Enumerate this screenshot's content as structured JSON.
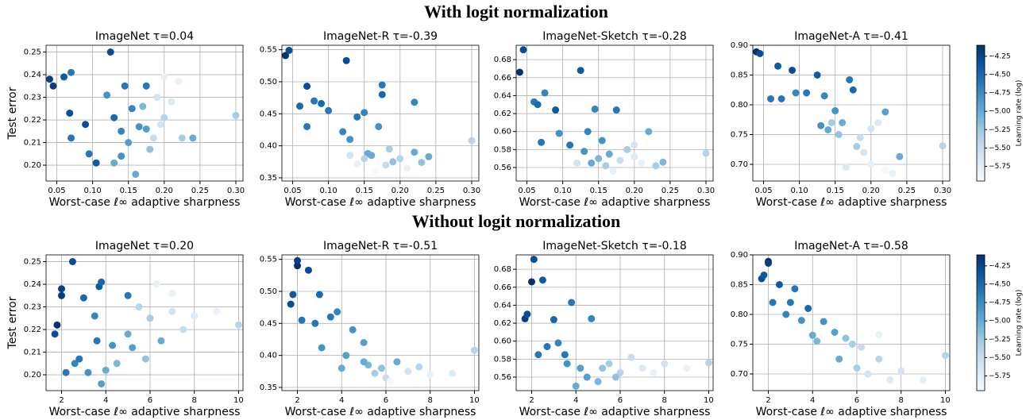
{
  "headings": [
    "With logit normalization",
    "Without logit normalization"
  ],
  "colorbars": [
    {
      "label": "Learning rate (log)",
      "cmap": "Blues",
      "clim": [
        -5.95,
        -4.1
      ],
      "ticks": [
        {
          "value": -4.25,
          "label": "−4.25"
        },
        {
          "value": -4.5,
          "label": "−4.50"
        },
        {
          "value": -4.75,
          "label": "−4.75"
        },
        {
          "value": -5,
          "label": "−5.00"
        },
        {
          "value": -5.25,
          "label": "−5.25"
        },
        {
          "value": -5.5,
          "label": "−5.50"
        },
        {
          "value": -5.75,
          "label": "−5.75"
        }
      ]
    },
    {
      "label": "Learning rate (log)",
      "cmap": "Blues",
      "clim": [
        -5.95,
        -4.1
      ],
      "ticks": [
        {
          "value": -4.25,
          "label": "−4.25"
        },
        {
          "value": -4.5,
          "label": "−4.50"
        },
        {
          "value": -4.75,
          "label": "−4.75"
        },
        {
          "value": -5,
          "label": "−5.00"
        },
        {
          "value": -5.25,
          "label": "−5.25"
        },
        {
          "value": -5.5,
          "label": "−5.50"
        },
        {
          "value": -5.75,
          "label": "−5.75"
        }
      ]
    }
  ],
  "chart_data": [
    {
      "type": "scatter",
      "title": "ImageNet τ=0.04",
      "xlabel": "Worst-case ℓ∞ adaptive sharpness",
      "ylabel": "Test error",
      "grid": true,
      "xlim": [
        0.035,
        0.31
      ],
      "ylim": [
        0.193,
        0.253
      ],
      "xticks": [
        0.05,
        {
          "value": 0.1,
          "label": "0.10"
        },
        0.15,
        {
          "value": 0.2,
          "label": "0.20"
        },
        0.25,
        {
          "value": 0.3,
          "label": "0.30"
        }
      ],
      "yticks": [
        {
          "value": 0.2,
          "label": "0.20"
        },
        0.21,
        0.22,
        0.23,
        0.24,
        0.25
      ],
      "x": [
        0.04,
        0.045,
        0.06,
        0.07,
        0.068,
        0.07,
        0.09,
        0.095,
        0.105,
        0.12,
        0.125,
        0.13,
        0.13,
        0.14,
        0.145,
        0.15,
        0.155,
        0.16,
        0.165,
        0.17,
        0.175,
        0.175,
        0.18,
        0.19,
        0.2,
        0.2,
        0.21,
        0.22,
        0.225,
        0.24,
        0.3,
        0.185,
        0.195,
        0.14
      ],
      "y": [
        0.238,
        0.235,
        0.239,
        0.241,
        0.223,
        0.212,
        0.218,
        0.205,
        0.201,
        0.231,
        0.25,
        0.221,
        0.201,
        0.215,
        0.235,
        0.21,
        0.225,
        0.196,
        0.217,
        0.226,
        0.235,
        0.216,
        0.207,
        0.23,
        0.239,
        0.221,
        0.228,
        0.237,
        0.212,
        0.212,
        0.222,
        0.212,
        0.218,
        0.204
      ],
      "c": [
        -4.2,
        -4.2,
        -4.4,
        -4.6,
        -4.3,
        -4.6,
        -4.3,
        -4.6,
        -4.4,
        -4.8,
        -4.3,
        -4.5,
        -5.0,
        -4.7,
        -4.6,
        -4.9,
        -4.7,
        -5.0,
        -4.8,
        -5.1,
        -4.6,
        -4.9,
        -5.2,
        -5.6,
        -5.8,
        -5.4,
        -5.7,
        -5.8,
        -5.3,
        -5.0,
        -5.3,
        -5.5,
        -5.6,
        -4.8
      ]
    },
    {
      "type": "scatter",
      "title": "ImageNet-R τ=-0.39",
      "xlabel": "Worst-case ℓ∞ adaptive sharpness",
      "grid": true,
      "xlim": [
        0.035,
        0.31
      ],
      "ylim": [
        0.345,
        0.557
      ],
      "xticks": [
        0.05,
        {
          "value": 0.1,
          "label": "0.10"
        },
        0.15,
        {
          "value": 0.2,
          "label": "0.20"
        },
        0.25,
        {
          "value": 0.3,
          "label": "0.30"
        }
      ],
      "yticks": [
        0.35,
        {
          "value": 0.4,
          "label": "0.40"
        },
        0.45,
        {
          "value": 0.5,
          "label": "0.50"
        },
        0.55
      ],
      "x": [
        0.04,
        0.045,
        0.06,
        0.07,
        0.07,
        0.08,
        0.09,
        0.1,
        0.12,
        0.125,
        0.13,
        0.14,
        0.15,
        0.155,
        0.16,
        0.17,
        0.175,
        0.175,
        0.18,
        0.19,
        0.2,
        0.21,
        0.22,
        0.22,
        0.23,
        0.24,
        0.3,
        0.13,
        0.14,
        0.165,
        0.185,
        0.15
      ],
      "y": [
        0.541,
        0.549,
        0.462,
        0.493,
        0.43,
        0.47,
        0.466,
        0.455,
        0.422,
        0.533,
        0.41,
        0.445,
        0.452,
        0.388,
        0.385,
        0.43,
        0.495,
        0.48,
        0.37,
        0.375,
        0.38,
        0.365,
        0.39,
        0.468,
        0.374,
        0.383,
        0.408,
        0.385,
        0.372,
        0.36,
        0.395,
        0.38
      ],
      "c": [
        -4.1,
        -4.3,
        -4.5,
        -4.3,
        -4.6,
        -4.6,
        -4.5,
        -4.6,
        -4.7,
        -4.3,
        -4.8,
        -4.6,
        -4.7,
        -5.0,
        -5.0,
        -4.8,
        -4.6,
        -4.5,
        -5.5,
        -5.2,
        -5.4,
        -5.8,
        -5.0,
        -4.7,
        -5.2,
        -5.0,
        -5.4,
        -5.6,
        -5.8,
        -5.9,
        -5.3,
        -5.4
      ]
    },
    {
      "type": "scatter",
      "title": "ImageNet-Sketch τ=-0.28",
      "xlabel": "Worst-case ℓ∞ adaptive sharpness",
      "grid": true,
      "xlim": [
        0.035,
        0.31
      ],
      "ylim": [
        0.545,
        0.696
      ],
      "xticks": [
        0.05,
        {
          "value": 0.1,
          "label": "0.10"
        },
        0.15,
        {
          "value": 0.2,
          "label": "0.20"
        },
        0.25,
        {
          "value": 0.3,
          "label": "0.30"
        }
      ],
      "yticks": [
        0.56,
        0.58,
        {
          "value": 0.6,
          "label": "0.60"
        },
        0.62,
        0.64,
        0.66,
        0.68
      ],
      "x": [
        0.04,
        0.045,
        0.06,
        0.065,
        0.07,
        0.075,
        0.09,
        0.095,
        0.11,
        0.125,
        0.13,
        0.135,
        0.14,
        0.145,
        0.15,
        0.155,
        0.16,
        0.165,
        0.175,
        0.18,
        0.19,
        0.2,
        0.21,
        0.22,
        0.23,
        0.24,
        0.3,
        0.12,
        0.17,
        0.2
      ],
      "y": [
        0.666,
        0.691,
        0.633,
        0.63,
        0.588,
        0.643,
        0.624,
        0.598,
        0.585,
        0.668,
        0.578,
        0.6,
        0.565,
        0.625,
        0.57,
        0.59,
        0.562,
        0.575,
        0.624,
        0.568,
        0.58,
        0.572,
        0.565,
        0.6,
        0.562,
        0.566,
        0.576,
        0.565,
        0.556,
        0.585
      ],
      "c": [
        -4.1,
        -4.3,
        -4.6,
        -4.5,
        -4.6,
        -4.7,
        -4.4,
        -4.8,
        -4.6,
        -4.4,
        -4.8,
        -4.7,
        -5.0,
        -4.7,
        -5.1,
        -4.8,
        -5.3,
        -5.0,
        -4.6,
        -5.5,
        -5.3,
        -5.7,
        -5.8,
        -5.0,
        -5.3,
        -5.1,
        -5.4,
        -5.6,
        -5.8,
        -5.6
      ]
    },
    {
      "type": "scatter",
      "title": "ImageNet-A τ=-0.41",
      "xlabel": "Worst-case ℓ∞ adaptive sharpness",
      "grid": true,
      "xlim": [
        0.035,
        0.31
      ],
      "ylim": [
        0.672,
        0.9
      ],
      "xticks": [
        0.05,
        {
          "value": 0.1,
          "label": "0.10"
        },
        0.15,
        {
          "value": 0.2,
          "label": "0.20"
        },
        0.25,
        {
          "value": 0.3,
          "label": "0.30"
        }
      ],
      "yticks": [
        {
          "value": 0.7,
          "label": "0.70"
        },
        0.75,
        {
          "value": 0.8,
          "label": "0.80"
        },
        0.85,
        {
          "value": 0.9,
          "label": "0.90"
        }
      ],
      "x": [
        0.04,
        0.045,
        0.06,
        0.07,
        0.075,
        0.09,
        0.095,
        0.11,
        0.125,
        0.13,
        0.135,
        0.14,
        0.15,
        0.155,
        0.16,
        0.17,
        0.175,
        0.18,
        0.19,
        0.2,
        0.21,
        0.22,
        0.22,
        0.23,
        0.24,
        0.3,
        0.165,
        0.2,
        0.185,
        0.145
      ],
      "y": [
        0.889,
        0.886,
        0.81,
        0.865,
        0.81,
        0.858,
        0.82,
        0.82,
        0.85,
        0.765,
        0.815,
        0.758,
        0.79,
        0.75,
        0.77,
        0.842,
        0.825,
        0.73,
        0.72,
        0.7,
        0.77,
        0.788,
        0.69,
        0.685,
        0.713,
        0.731,
        0.695,
        0.76,
        0.745,
        0.77
      ],
      "c": [
        -4.1,
        -4.3,
        -4.6,
        -4.4,
        -4.6,
        -4.3,
        -4.7,
        -4.6,
        -4.4,
        -4.8,
        -4.7,
        -5.0,
        -4.8,
        -5.2,
        -5.0,
        -4.6,
        -4.5,
        -5.3,
        -5.6,
        -5.8,
        -5.7,
        -4.9,
        -5.9,
        -5.8,
        -5.0,
        -5.4,
        -5.7,
        -5.6,
        -5.5,
        -5.3
      ]
    },
    {
      "type": "scatter",
      "title": "ImageNet τ=0.20",
      "xlabel": "Worst-case ℓ∞ adaptive sharpness",
      "ylabel": "Test error",
      "grid": true,
      "xlim": [
        1.3,
        10.2
      ],
      "ylim": [
        0.193,
        0.253
      ],
      "xticks": [
        2,
        4,
        6,
        8,
        10
      ],
      "yticks": [
        {
          "value": 0.2,
          "label": "0.20"
        },
        0.21,
        0.22,
        0.23,
        0.24,
        0.25
      ],
      "x": [
        1.7,
        1.8,
        2,
        2,
        2.2,
        2.5,
        2.6,
        2.8,
        3,
        3.2,
        3.5,
        3.6,
        3.7,
        3.8,
        3.8,
        4,
        4.3,
        4.5,
        5,
        5.2,
        5.5,
        5.8,
        6,
        6.3,
        6.5,
        7,
        7,
        7.5,
        8,
        9,
        10,
        5
      ],
      "y": [
        0.218,
        0.222,
        0.238,
        0.235,
        0.201,
        0.25,
        0.205,
        0.207,
        0.234,
        0.201,
        0.226,
        0.215,
        0.239,
        0.241,
        0.196,
        0.202,
        0.213,
        0.205,
        0.235,
        0.212,
        0.23,
        0.207,
        0.225,
        0.24,
        0.215,
        0.228,
        0.236,
        0.22,
        0.226,
        0.228,
        0.222,
        0.218
      ],
      "c": [
        -4.3,
        -4.1,
        -4.2,
        -4.2,
        -4.6,
        -4.3,
        -4.7,
        -4.6,
        -4.5,
        -4.8,
        -4.7,
        -4.6,
        -4.4,
        -4.5,
        -4.9,
        -5.0,
        -4.8,
        -5.1,
        -4.6,
        -4.9,
        -5.4,
        -5.2,
        -5.3,
        -5.8,
        -5.0,
        -5.6,
        -5.8,
        -5.5,
        -5.7,
        -5.8,
        -5.4,
        -5.0
      ]
    },
    {
      "type": "scatter",
      "title": "ImageNet-R τ=-0.51",
      "xlabel": "Worst-case ℓ∞ adaptive sharpness",
      "grid": true,
      "xlim": [
        1.3,
        10.2
      ],
      "ylim": [
        0.345,
        0.557
      ],
      "xticks": [
        2,
        4,
        6,
        8,
        10
      ],
      "yticks": [
        0.35,
        {
          "value": 0.4,
          "label": "0.40"
        },
        0.45,
        {
          "value": 0.5,
          "label": "0.50"
        },
        0.55
      ],
      "x": [
        1.7,
        1.8,
        2,
        2,
        2.2,
        2.5,
        2.8,
        3,
        3.1,
        3.5,
        3.8,
        4,
        4.5,
        5,
        5.2,
        5.5,
        5.8,
        6,
        6.5,
        7,
        7.5,
        8,
        9,
        10,
        4.2,
        6.2,
        5
      ],
      "y": [
        0.48,
        0.495,
        0.54,
        0.548,
        0.455,
        0.533,
        0.45,
        0.495,
        0.412,
        0.46,
        0.468,
        0.38,
        0.44,
        0.42,
        0.385,
        0.372,
        0.38,
        0.365,
        0.39,
        0.375,
        0.382,
        0.37,
        0.372,
        0.408,
        0.4,
        0.36,
        0.39
      ],
      "c": [
        -4.3,
        -4.4,
        -4.1,
        -4.2,
        -4.6,
        -4.3,
        -4.6,
        -4.5,
        -4.8,
        -4.6,
        -4.7,
        -5.0,
        -4.8,
        -4.9,
        -5.1,
        -5.3,
        -5.2,
        -5.5,
        -5.0,
        -5.6,
        -5.4,
        -5.8,
        -5.7,
        -5.4,
        -4.9,
        -5.9,
        -5.0
      ]
    },
    {
      "type": "scatter",
      "title": "ImageNet-Sketch τ=-0.18",
      "xlabel": "Worst-case ℓ∞ adaptive sharpness",
      "grid": true,
      "xlim": [
        1.3,
        10.2
      ],
      "ylim": [
        0.545,
        0.696
      ],
      "xticks": [
        2,
        4,
        6,
        8,
        10
      ],
      "yticks": [
        0.56,
        0.58,
        {
          "value": 0.6,
          "label": "0.60"
        },
        0.62,
        0.64,
        0.66,
        0.68
      ],
      "x": [
        1.7,
        1.8,
        2,
        2.1,
        2.3,
        2.5,
        2.7,
        3,
        3.2,
        3.5,
        3.8,
        4,
        4.2,
        4.7,
        5,
        5.2,
        5.5,
        6,
        6.5,
        7,
        7.5,
        8,
        9,
        10,
        4.5,
        5.8,
        3.6
      ],
      "y": [
        0.625,
        0.63,
        0.666,
        0.691,
        0.585,
        0.668,
        0.594,
        0.624,
        0.598,
        0.585,
        0.643,
        0.55,
        0.57,
        0.625,
        0.555,
        0.57,
        0.575,
        0.565,
        0.582,
        0.57,
        0.565,
        0.575,
        0.57,
        0.576,
        0.56,
        0.56,
        0.575
      ],
      "c": [
        -4.2,
        -4.3,
        -4.1,
        -4.3,
        -4.6,
        -4.4,
        -4.6,
        -4.5,
        -4.7,
        -4.6,
        -4.6,
        -5.0,
        -4.9,
        -4.7,
        -5.1,
        -5.2,
        -5.3,
        -5.4,
        -5.5,
        -5.7,
        -5.8,
        -5.6,
        -5.8,
        -5.4,
        -4.9,
        -5.2,
        -4.8
      ]
    },
    {
      "type": "scatter",
      "title": "ImageNet-A τ=-0.58",
      "xlabel": "Worst-case ℓ∞ adaptive sharpness",
      "grid": true,
      "xlim": [
        1.3,
        10.2
      ],
      "ylim": [
        0.672,
        0.9
      ],
      "xticks": [
        2,
        4,
        6,
        8,
        10
      ],
      "yticks": [
        {
          "value": 0.7,
          "label": "0.70"
        },
        0.75,
        {
          "value": 0.8,
          "label": "0.80"
        },
        0.85,
        {
          "value": 0.9,
          "label": "0.90"
        }
      ],
      "x": [
        1.7,
        1.8,
        2,
        2,
        2.2,
        2.5,
        2.8,
        3,
        3.2,
        3.5,
        3.8,
        4,
        4.5,
        5,
        5.2,
        5.5,
        6,
        6.2,
        6.5,
        7,
        7,
        7.5,
        8,
        9,
        10,
        4.2,
        5.8
      ],
      "y": [
        0.86,
        0.866,
        0.889,
        0.886,
        0.82,
        0.85,
        0.8,
        0.82,
        0.843,
        0.79,
        0.81,
        0.765,
        0.788,
        0.77,
        0.725,
        0.76,
        0.71,
        0.745,
        0.7,
        0.766,
        0.725,
        0.69,
        0.705,
        0.69,
        0.731,
        0.755,
        0.75
      ],
      "c": [
        -4.3,
        -4.4,
        -4.1,
        -4.2,
        -4.6,
        -4.4,
        -4.7,
        -4.6,
        -4.6,
        -4.8,
        -4.5,
        -5.0,
        -4.8,
        -4.9,
        -5.0,
        -5.2,
        -5.3,
        -5.5,
        -5.6,
        -5.8,
        -5.4,
        -5.7,
        -5.6,
        -5.8,
        -5.4,
        -5.1,
        -5.3
      ]
    }
  ]
}
